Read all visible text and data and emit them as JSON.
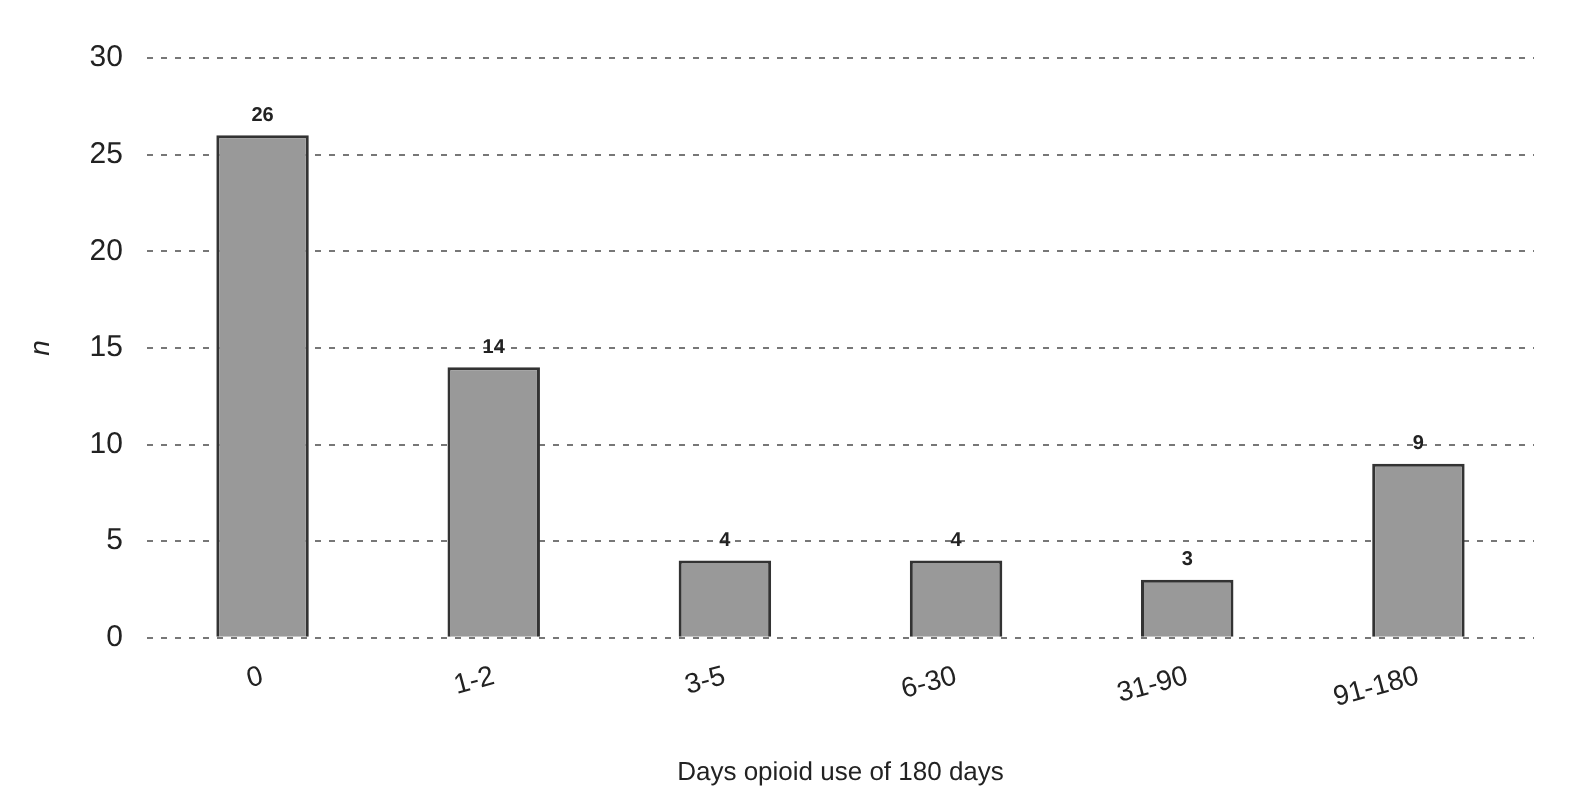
{
  "chart_data": {
    "type": "bar",
    "xlabel": "Days opioid use of 180 days",
    "ylabel": "n",
    "categories": [
      "0",
      "1-2",
      "3-5",
      "6-30",
      "31-90",
      "91-180"
    ],
    "values": [
      26,
      14,
      4,
      4,
      3,
      9
    ],
    "color": "#999999",
    "ylim": [
      0,
      30
    ],
    "yticks": [
      0,
      5,
      10,
      15,
      20,
      25,
      30
    ],
    "grid": "y",
    "data_labels": true
  }
}
